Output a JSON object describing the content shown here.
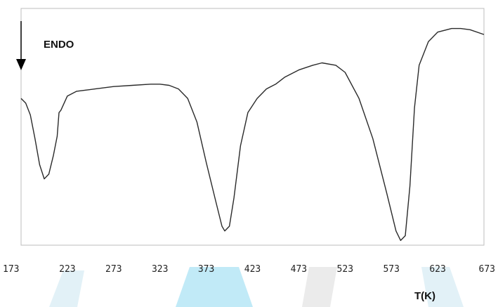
{
  "chart_data": {
    "type": "line",
    "xlabel": "T(K)",
    "ylabel": "",
    "annotation": "ENDO",
    "x_ticks": [
      "173",
      "223",
      "273",
      "323",
      "373",
      "423",
      "473",
      "523",
      "573",
      "623",
      "673"
    ],
    "xlim": [
      173,
      673
    ],
    "y_ticks_shown": false,
    "grid": false,
    "series": [
      {
        "points": [
          [
            173,
            0.62
          ],
          [
            178,
            0.6
          ],
          [
            183,
            0.55
          ],
          [
            188,
            0.45
          ],
          [
            193,
            0.34
          ],
          [
            198,
            0.28
          ],
          [
            203,
            0.3
          ],
          [
            208,
            0.38
          ],
          [
            212,
            0.46
          ],
          [
            214,
            0.56
          ],
          [
            216,
            0.57
          ],
          [
            223,
            0.63
          ],
          [
            233,
            0.65
          ],
          [
            253,
            0.66
          ],
          [
            273,
            0.67
          ],
          [
            293,
            0.675
          ],
          [
            313,
            0.68
          ],
          [
            323,
            0.68
          ],
          [
            333,
            0.675
          ],
          [
            343,
            0.66
          ],
          [
            353,
            0.62
          ],
          [
            363,
            0.52
          ],
          [
            373,
            0.35
          ],
          [
            383,
            0.19
          ],
          [
            390,
            0.08
          ],
          [
            393,
            0.06
          ],
          [
            398,
            0.08
          ],
          [
            403,
            0.2
          ],
          [
            410,
            0.42
          ],
          [
            418,
            0.56
          ],
          [
            428,
            0.62
          ],
          [
            438,
            0.66
          ],
          [
            448,
            0.68
          ],
          [
            458,
            0.71
          ],
          [
            473,
            0.74
          ],
          [
            488,
            0.76
          ],
          [
            498,
            0.77
          ],
          [
            513,
            0.76
          ],
          [
            523,
            0.73
          ],
          [
            538,
            0.62
          ],
          [
            553,
            0.45
          ],
          [
            568,
            0.22
          ],
          [
            578,
            0.06
          ],
          [
            583,
            0.02
          ],
          [
            588,
            0.04
          ],
          [
            593,
            0.25
          ],
          [
            598,
            0.58
          ],
          [
            603,
            0.76
          ],
          [
            613,
            0.86
          ],
          [
            623,
            0.9
          ],
          [
            638,
            0.915
          ],
          [
            648,
            0.915
          ],
          [
            658,
            0.91
          ],
          [
            673,
            0.89
          ]
        ]
      }
    ]
  },
  "colors": {
    "background": "#ffffff",
    "line": "#2a2a2a",
    "frame": "#bdbdbd",
    "watermark": "#8ed8f0"
  }
}
